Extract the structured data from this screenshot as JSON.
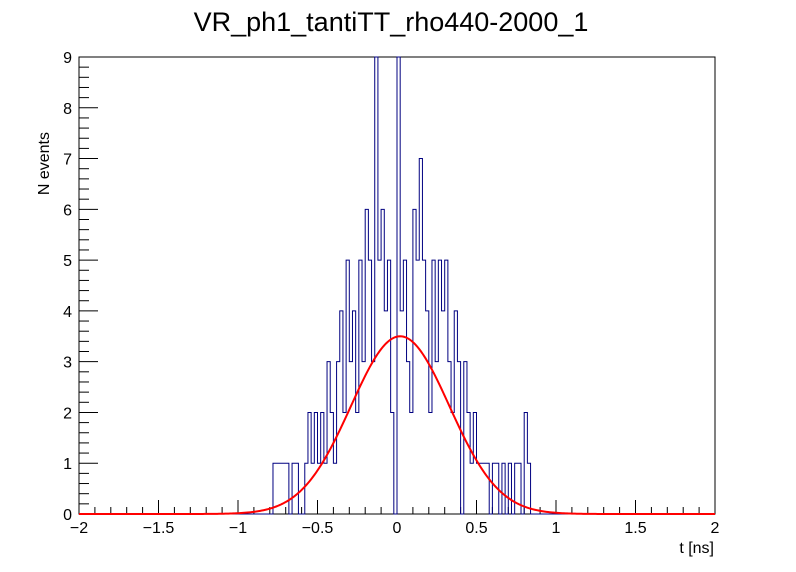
{
  "chart_data": {
    "type": "bar",
    "title": "VR_ph1_tantiTT_rho440-2000_1",
    "xlabel": "t [ns]",
    "ylabel": "N events",
    "xlim": [
      -2,
      2
    ],
    "ylim": [
      0,
      9
    ],
    "xticks": [
      "−2",
      "−1.5",
      "−1",
      "−0.5",
      "0",
      "0.5",
      "1",
      "1.5",
      "2"
    ],
    "yticks": [
      "0",
      "1",
      "2",
      "3",
      "4",
      "5",
      "6",
      "7",
      "8",
      "9"
    ],
    "grid": false,
    "histogram": {
      "name": "",
      "color": "#000080",
      "bin_width": 0.02,
      "bins": [
        [
          -0.78,
          1
        ],
        [
          -0.76,
          1
        ],
        [
          -0.74,
          1
        ],
        [
          -0.72,
          1
        ],
        [
          -0.7,
          1
        ],
        [
          -0.66,
          1
        ],
        [
          -0.64,
          1
        ],
        [
          -0.58,
          1
        ],
        [
          -0.56,
          2
        ],
        [
          -0.54,
          1
        ],
        [
          -0.52,
          2
        ],
        [
          -0.5,
          1
        ],
        [
          -0.48,
          2
        ],
        [
          -0.46,
          1
        ],
        [
          -0.44,
          3
        ],
        [
          -0.42,
          2
        ],
        [
          -0.4,
          1
        ],
        [
          -0.38,
          3
        ],
        [
          -0.36,
          4
        ],
        [
          -0.34,
          2
        ],
        [
          -0.32,
          5
        ],
        [
          -0.3,
          3
        ],
        [
          -0.28,
          4
        ],
        [
          -0.26,
          2
        ],
        [
          -0.24,
          5
        ],
        [
          -0.22,
          3
        ],
        [
          -0.2,
          6
        ],
        [
          -0.18,
          5
        ],
        [
          -0.16,
          3
        ],
        [
          -0.14,
          9
        ],
        [
          -0.12,
          5
        ],
        [
          -0.1,
          6
        ],
        [
          -0.08,
          4
        ],
        [
          -0.06,
          5
        ],
        [
          -0.04,
          2
        ],
        [
          -0.02,
          0
        ],
        [
          0.0,
          9
        ],
        [
          0.02,
          4
        ],
        [
          0.04,
          5
        ],
        [
          0.06,
          3
        ],
        [
          0.08,
          2
        ],
        [
          0.1,
          6
        ],
        [
          0.12,
          5
        ],
        [
          0.14,
          7
        ],
        [
          0.16,
          5
        ],
        [
          0.18,
          4
        ],
        [
          0.2,
          2
        ],
        [
          0.22,
          5
        ],
        [
          0.24,
          3
        ],
        [
          0.26,
          5
        ],
        [
          0.28,
          4
        ],
        [
          0.3,
          5
        ],
        [
          0.32,
          3
        ],
        [
          0.34,
          2
        ],
        [
          0.36,
          4
        ],
        [
          0.38,
          3
        ],
        [
          0.4,
          0
        ],
        [
          0.42,
          3
        ],
        [
          0.44,
          2
        ],
        [
          0.46,
          1
        ],
        [
          0.48,
          2
        ],
        [
          0.5,
          1
        ],
        [
          0.52,
          1
        ],
        [
          0.54,
          1
        ],
        [
          0.56,
          1
        ],
        [
          0.6,
          1
        ],
        [
          0.62,
          1
        ],
        [
          0.66,
          1
        ],
        [
          0.7,
          1
        ],
        [
          0.74,
          1
        ],
        [
          0.76,
          1
        ],
        [
          0.8,
          2
        ],
        [
          0.82,
          1
        ]
      ]
    },
    "fit": {
      "type": "gaussian",
      "color": "#ff0000",
      "amplitude": 3.5,
      "mean": 0.02,
      "sigma": 0.31
    }
  }
}
